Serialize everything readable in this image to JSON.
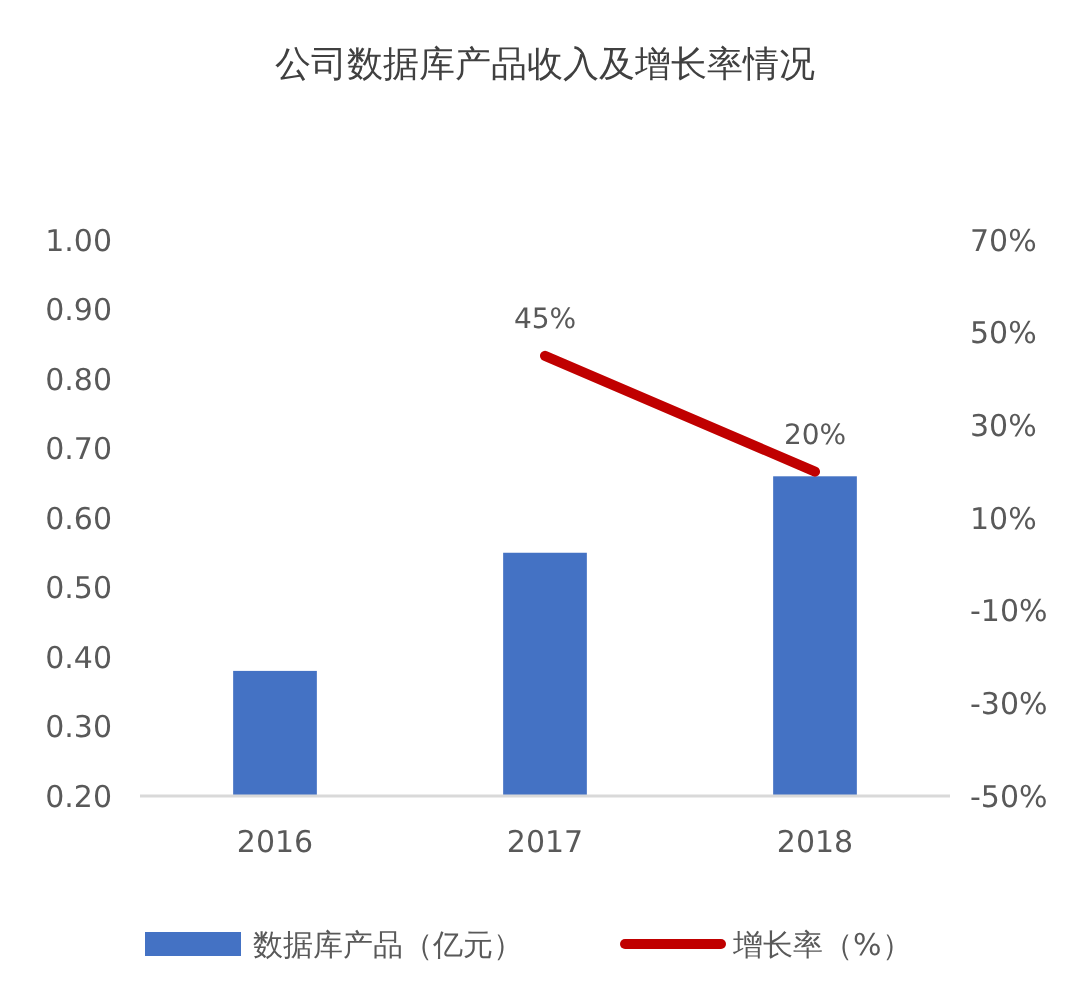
{
  "chart_data": {
    "type": "bar",
    "title": "公司数据库产品收入及增长率情况",
    "categories": [
      "2016",
      "2017",
      "2018"
    ],
    "series": [
      {
        "name": "数据库产品（亿元）",
        "color": "#4472c4",
        "values": [
          0.38,
          0.55,
          0.66
        ]
      },
      {
        "name": "增长率（%）",
        "type": "line",
        "axis": "y2",
        "color": "#c00000",
        "values": [
          null,
          45,
          20
        ],
        "value_labels": [
          null,
          "45%",
          "20%"
        ]
      }
    ],
    "ylim": [
      0.2,
      1.0
    ],
    "yticks": [
      {
        "value": 0.2,
        "label": "0.20"
      },
      {
        "value": 0.3,
        "label": "0.30"
      },
      {
        "value": 0.4,
        "label": "0.40"
      },
      {
        "value": 0.5,
        "label": "0.50"
      },
      {
        "value": 0.6,
        "label": "0.60"
      },
      {
        "value": 0.7,
        "label": "0.70"
      },
      {
        "value": 0.8,
        "label": "0.80"
      },
      {
        "value": 0.9,
        "label": "0.90"
      },
      {
        "value": 1.0,
        "label": "1.00"
      }
    ],
    "y2lim": [
      -50,
      70
    ],
    "y2ticks": [
      {
        "value": -50,
        "label": "-50%"
      },
      {
        "value": -30,
        "label": "-30%"
      },
      {
        "value": -10,
        "label": "-10%"
      },
      {
        "value": 10,
        "label": "10%"
      },
      {
        "value": 30,
        "label": "30%"
      },
      {
        "value": 50,
        "label": "50%"
      },
      {
        "value": 70,
        "label": "70%"
      }
    ],
    "grid": false,
    "legend": "bottom",
    "marker": "none"
  }
}
